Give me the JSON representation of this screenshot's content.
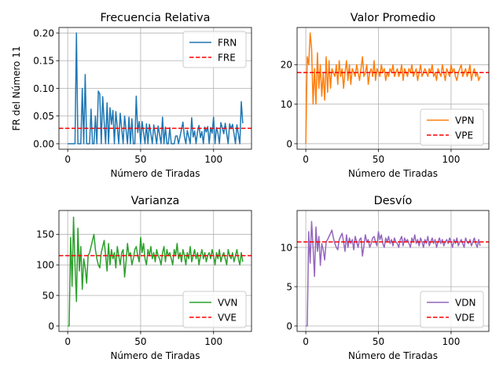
{
  "chart_data": [
    {
      "type": "line",
      "title": "Frecuencia Relativa",
      "xlabel": "Número de Tiradas",
      "ylabel": "FR del Número 11",
      "xlim": [
        -6,
        126
      ],
      "ylim": [
        -0.01,
        0.21
      ],
      "xticks": [
        0,
        50,
        100
      ],
      "yticks": [
        0.0,
        0.05,
        0.1,
        0.15,
        0.2
      ],
      "ytick_labels": [
        "0.00",
        "0.05",
        "0.10",
        "0.15",
        "0.20"
      ],
      "grid": true,
      "legend_position": "upper right",
      "series": [
        {
          "name": "FRN",
          "color": "#1f77b4",
          "style": "solid",
          "x": [
            0,
            1,
            2,
            3,
            4,
            5,
            6,
            7,
            8,
            9,
            10,
            11,
            12,
            13,
            14,
            15,
            16,
            17,
            18,
            19,
            20,
            21,
            22,
            23,
            24,
            25,
            26,
            27,
            28,
            29,
            30,
            31,
            32,
            33,
            34,
            35,
            36,
            37,
            38,
            39,
            40,
            41,
            42,
            43,
            44,
            45,
            46,
            47,
            48,
            49,
            50,
            51,
            52,
            53,
            54,
            55,
            56,
            57,
            58,
            59,
            60,
            61,
            62,
            63,
            64,
            65,
            66,
            67,
            68,
            69,
            70,
            71,
            72,
            73,
            74,
            75,
            76,
            77,
            78,
            79,
            80,
            81,
            82,
            83,
            84,
            85,
            86,
            87,
            88,
            89,
            90,
            91,
            92,
            93,
            94,
            95,
            96,
            97,
            98,
            99,
            100,
            101,
            102,
            103,
            104,
            105,
            106,
            107,
            108,
            109,
            110,
            111,
            112,
            113,
            114,
            115,
            116,
            117,
            118,
            119,
            120
          ],
          "values": [
            0.0,
            0.0,
            0.0,
            0.0,
            0.0,
            0.0,
            0.2,
            0.0,
            0.0,
            0.0,
            0.1,
            0.0,
            0.125,
            0.0,
            0.0,
            0.0,
            0.0625,
            0.0,
            0.0,
            0.05,
            0.0,
            0.095,
            0.09,
            0.0,
            0.085,
            0.04,
            0.0,
            0.074,
            0.0,
            0.065,
            0.035,
            0.06,
            0.0,
            0.058,
            0.03,
            0.0,
            0.055,
            0.027,
            0.0,
            0.05,
            0.025,
            0.0,
            0.048,
            0.0,
            0.045,
            0.0,
            0.0,
            0.086,
            0.02,
            0.04,
            0.0,
            0.04,
            0.02,
            0.0,
            0.036,
            0.0,
            0.035,
            0.018,
            0.0,
            0.034,
            0.017,
            0.0,
            0.032,
            0.016,
            0.0,
            0.048,
            0.0,
            0.03,
            0.0,
            0.0,
            0.029,
            0.0,
            0.0,
            0.0,
            0.014,
            0.014,
            0.0,
            0.013,
            0.026,
            0.039,
            0.013,
            0.0,
            0.024,
            0.012,
            0.0,
            0.047,
            0.012,
            0.023,
            0.0,
            0.022,
            0.033,
            0.011,
            0.022,
            0.0,
            0.03,
            0.021,
            0.031,
            0.0,
            0.029,
            0.019,
            0.048,
            0.0,
            0.029,
            0.019,
            0.0,
            0.038,
            0.028,
            0.018,
            0.037,
            0.018,
            0.0,
            0.036,
            0.027,
            0.035,
            0.018,
            0.0,
            0.034,
            0.017,
            0.0,
            0.076,
            0.037
          ],
          "label_key": "FRN"
        },
        {
          "name": "FRE",
          "color": "#ff0000",
          "style": "dashed",
          "y": 0.0278
        }
      ]
    },
    {
      "type": "line",
      "title": "Valor Promedio",
      "xlabel": "Número de Tiradas",
      "ylabel": "",
      "xlim": [
        -6,
        126
      ],
      "ylim": [
        -1.4,
        29.4
      ],
      "xticks": [
        0,
        50,
        100
      ],
      "yticks": [
        0,
        10,
        20
      ],
      "ytick_labels": [
        "0",
        "10",
        "20"
      ],
      "grid": true,
      "legend_position": "lower right",
      "series": [
        {
          "name": "VPN",
          "color": "#ff7f0e",
          "style": "solid",
          "x": [
            0,
            1,
            2,
            3,
            4,
            5,
            6,
            7,
            8,
            9,
            10,
            11,
            12,
            13,
            14,
            15,
            16,
            17,
            18,
            19,
            20,
            21,
            22,
            23,
            24,
            25,
            26,
            27,
            28,
            29,
            30,
            31,
            32,
            33,
            34,
            35,
            36,
            37,
            38,
            39,
            40,
            41,
            42,
            43,
            44,
            45,
            46,
            47,
            48,
            49,
            50,
            51,
            52,
            53,
            54,
            55,
            56,
            57,
            58,
            59,
            60,
            61,
            62,
            63,
            64,
            65,
            66,
            67,
            68,
            69,
            70,
            71,
            72,
            73,
            74,
            75,
            76,
            77,
            78,
            79,
            80,
            81,
            82,
            83,
            84,
            85,
            86,
            87,
            88,
            89,
            90,
            91,
            92,
            93,
            94,
            95,
            96,
            97,
            98,
            99,
            100,
            101,
            102,
            103,
            104,
            105,
            106,
            107,
            108,
            109,
            110,
            111,
            112,
            113,
            114,
            115,
            116,
            117,
            118,
            119,
            120
          ],
          "values": [
            0,
            22,
            20,
            28,
            24,
            10,
            19,
            10,
            23,
            14,
            20,
            12,
            18,
            11,
            22,
            13,
            21,
            14,
            19,
            18,
            17,
            20,
            15,
            21,
            17,
            19,
            14,
            18,
            21,
            16,
            20,
            15,
            19,
            18,
            17,
            20,
            18,
            16,
            19,
            22,
            17,
            18,
            20,
            15,
            18,
            19,
            17,
            21,
            16,
            19,
            18,
            17,
            20,
            18,
            19,
            16,
            18,
            17,
            19,
            18,
            20,
            17,
            18,
            19,
            17,
            18,
            20,
            16,
            19,
            18,
            17,
            19,
            18,
            20,
            17,
            18,
            19,
            16,
            18,
            20,
            17,
            18,
            19,
            18,
            17,
            19,
            18,
            20,
            17,
            18,
            16,
            19,
            18,
            17,
            20,
            18,
            16,
            19,
            18,
            17,
            20,
            18,
            19,
            17,
            16,
            18,
            19,
            20,
            17,
            18,
            19,
            17,
            18,
            20,
            16,
            18,
            19,
            17,
            18,
            16,
            17
          ],
          "label_key": "VPN"
        },
        {
          "name": "VPE",
          "color": "#ff0000",
          "style": "dashed",
          "y": 18
        }
      ]
    },
    {
      "type": "line",
      "title": "Varianza",
      "xlabel": "Número de Tiradas",
      "ylabel": "",
      "xlim": [
        -6,
        126
      ],
      "ylim": [
        -9,
        189
      ],
      "xticks": [
        0,
        50,
        100
      ],
      "yticks": [
        0,
        50,
        100,
        150
      ],
      "ytick_labels": [
        "0",
        "50",
        "100",
        "150"
      ],
      "grid": true,
      "legend_position": "lower right",
      "series": [
        {
          "name": "VVN",
          "color": "#2ca02c",
          "style": "solid",
          "x": [
            0,
            1,
            2,
            3,
            4,
            5,
            6,
            7,
            8,
            9,
            10,
            11,
            12,
            13,
            14,
            15,
            16,
            17,
            18,
            19,
            20,
            21,
            22,
            23,
            24,
            25,
            26,
            27,
            28,
            29,
            30,
            31,
            32,
            33,
            34,
            35,
            36,
            37,
            38,
            39,
            40,
            41,
            42,
            43,
            44,
            45,
            46,
            47,
            48,
            49,
            50,
            51,
            52,
            53,
            54,
            55,
            56,
            57,
            58,
            59,
            60,
            61,
            62,
            63,
            64,
            65,
            66,
            67,
            68,
            69,
            70,
            71,
            72,
            73,
            74,
            75,
            76,
            77,
            78,
            79,
            80,
            81,
            82,
            83,
            84,
            85,
            86,
            87,
            88,
            89,
            90,
            91,
            92,
            93,
            94,
            95,
            96,
            97,
            98,
            99,
            100,
            101,
            102,
            103,
            104,
            105,
            106,
            107,
            108,
            109,
            110,
            111,
            112,
            113,
            114,
            115,
            116,
            117,
            118,
            119,
            120
          ],
          "values": [
            0,
            0,
            145,
            65,
            178,
            100,
            40,
            160,
            90,
            130,
            60,
            110,
            95,
            70,
            115,
            120,
            130,
            140,
            150,
            125,
            110,
            100,
            95,
            120,
            130,
            140,
            115,
            90,
            135,
            100,
            125,
            110,
            120,
            95,
            130,
            115,
            100,
            120,
            125,
            80,
            105,
            135,
            115,
            120,
            100,
            110,
            125,
            130,
            115,
            105,
            145,
            120,
            135,
            110,
            100,
            125,
            115,
            130,
            110,
            120,
            105,
            125,
            115,
            110,
            100,
            120,
            130,
            105,
            125,
            115,
            120,
            110,
            100,
            125,
            115,
            135,
            110,
            120,
            105,
            125,
            115,
            100,
            120,
            110,
            130,
            105,
            115,
            125,
            110,
            120,
            100,
            115,
            125,
            110,
            120,
            105,
            115,
            120,
            110,
            125,
            115,
            100,
            120,
            110,
            125,
            105,
            115,
            120,
            110,
            100,
            125,
            115,
            110,
            120,
            105,
            115,
            125,
            110,
            100,
            120,
            105
          ],
          "label_key": "VVN"
        },
        {
          "name": "VVE",
          "color": "#ff0000",
          "style": "dashed",
          "y": 115
        }
      ]
    },
    {
      "type": "line",
      "title": "Desvío",
      "xlabel": "Número de Tiradas",
      "ylabel": "",
      "xlim": [
        -6,
        126
      ],
      "ylim": [
        -0.7,
        14.7
      ],
      "xticks": [
        0,
        50,
        100
      ],
      "yticks": [
        0,
        5,
        10
      ],
      "ytick_labels": [
        "0",
        "5",
        "10"
      ],
      "grid": true,
      "legend_position": "lower right",
      "series": [
        {
          "name": "VDN",
          "color": "#9467bd",
          "style": "solid",
          "x": [
            0,
            1,
            2,
            3,
            4,
            5,
            6,
            7,
            8,
            9,
            10,
            11,
            12,
            13,
            14,
            15,
            16,
            17,
            18,
            19,
            20,
            21,
            22,
            23,
            24,
            25,
            26,
            27,
            28,
            29,
            30,
            31,
            32,
            33,
            34,
            35,
            36,
            37,
            38,
            39,
            40,
            41,
            42,
            43,
            44,
            45,
            46,
            47,
            48,
            49,
            50,
            51,
            52,
            53,
            54,
            55,
            56,
            57,
            58,
            59,
            60,
            61,
            62,
            63,
            64,
            65,
            66,
            67,
            68,
            69,
            70,
            71,
            72,
            73,
            74,
            75,
            76,
            77,
            78,
            79,
            80,
            81,
            82,
            83,
            84,
            85,
            86,
            87,
            88,
            89,
            90,
            91,
            92,
            93,
            94,
            95,
            96,
            97,
            98,
            99,
            100,
            101,
            102,
            103,
            104,
            105,
            106,
            107,
            108,
            109,
            110,
            111,
            112,
            113,
            114,
            115,
            116,
            117,
            118,
            119,
            120
          ],
          "values": [
            0,
            0,
            12,
            8,
            13.3,
            10,
            6.3,
            12.6,
            9.5,
            11.4,
            7.7,
            10.5,
            9.7,
            8.4,
            10.7,
            11,
            11.4,
            11.8,
            12.2,
            11.2,
            10.5,
            10,
            9.7,
            11,
            11.4,
            11.8,
            10.7,
            9.5,
            11.6,
            10,
            11.2,
            10.5,
            11,
            9.7,
            11.4,
            10.7,
            10,
            11,
            11.2,
            8.9,
            10.2,
            11.6,
            10.7,
            11,
            10,
            10.5,
            11.2,
            11.4,
            10.7,
            10.2,
            12,
            11,
            11.6,
            10.5,
            10,
            11.2,
            10.7,
            11.4,
            10.5,
            11,
            10.2,
            11.2,
            10.7,
            10.5,
            10,
            11,
            11.4,
            10.2,
            11.2,
            10.7,
            11,
            10.5,
            10,
            11.2,
            10.7,
            11.6,
            10.5,
            11,
            10.2,
            11.2,
            10.7,
            10,
            11,
            10.5,
            11.4,
            10.2,
            10.7,
            11.2,
            10.5,
            11,
            10,
            10.7,
            11.2,
            10.5,
            11,
            10.2,
            10.7,
            11,
            10.5,
            11.2,
            10.7,
            10,
            11,
            10.5,
            11.2,
            10.2,
            10.7,
            11,
            10.5,
            10,
            11.2,
            10.7,
            10.5,
            11,
            10.2,
            10.7,
            11.2,
            10.5,
            10,
            11,
            10.2
          ],
          "label_key": "VDN"
        },
        {
          "name": "VDE",
          "color": "#ff0000",
          "style": "dashed",
          "y": 10.7
        }
      ]
    }
  ]
}
